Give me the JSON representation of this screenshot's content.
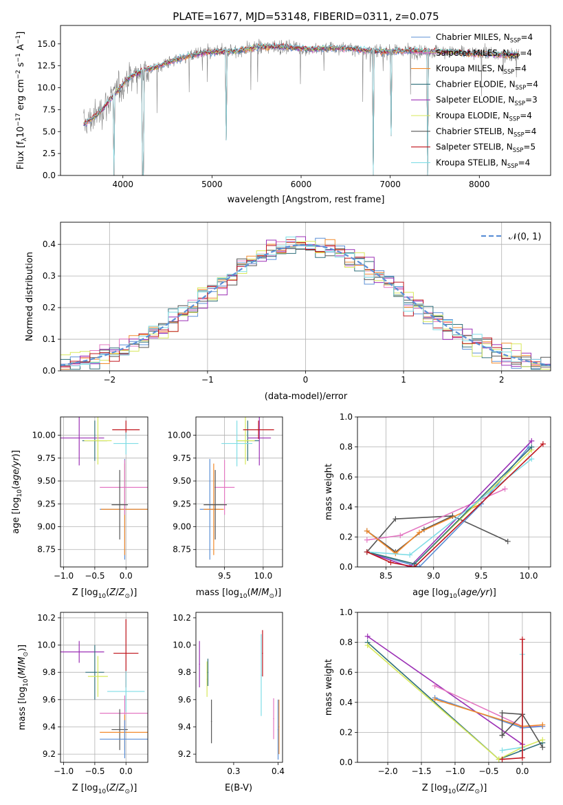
{
  "figure_title": "PLATE=1677, MJD=53148, FIBERID=0311, z=0.075",
  "colors": {
    "chabrier_miles": "#5b8fd6",
    "salpeter_miles": "#e377c2",
    "kroupa_miles": "#f28a2b",
    "chabrier_elodie": "#2f6f7a",
    "salpeter_elodie": "#9b2fb5",
    "kroupa_elodie": "#d7e85a",
    "chabrier_stelib": "#555555",
    "salpeter_stelib": "#c0141c",
    "kroupa_stelib": "#7fdde6",
    "data": "#808080",
    "normal": "#5b8fd6",
    "grid": "#b0b0b0"
  },
  "chart_data": [
    {
      "id": "spectrum",
      "type": "line",
      "title": "PLATE=1677, MJD=53148, FIBERID=0311, z=0.075",
      "xlabel": "wavelength [Angstrom, rest frame]",
      "ylabel": "Flux [f_λ10^-17 erg cm^-2 s^-1 A^-1]",
      "xlim": [
        3300,
        8800
      ],
      "ylim": [
        0,
        17.1
      ],
      "xticks": [
        4000,
        5000,
        6000,
        7000,
        8000
      ],
      "yticks": [
        0.0,
        2.5,
        5.0,
        7.5,
        10.0,
        12.5,
        15.0
      ],
      "grid": false,
      "legend_position": "top-right",
      "legend": [
        "Chabrier MILES, N_SSP=4",
        "Salpeter MILES, N_SSP=4",
        "Kroupa MILES, N_SSP=4",
        "Chabrier ELODIE, N_SSP=4",
        "Salpeter ELODIE, N_SSP=3",
        "Kroupa ELODIE, N_SSP=4",
        "Chabrier STELIB, N_SSP=4",
        "Salpeter STELIB, N_SSP=5",
        "Kroupa STELIB, N_SSP=4"
      ],
      "continuum": {
        "x": [
          3550,
          3650,
          3750,
          3850,
          3950,
          4050,
          4150,
          4250,
          4350,
          4500,
          4700,
          4900,
          5100,
          5300,
          5500,
          5700,
          5900,
          6100,
          6300,
          6500,
          6700,
          6900,
          7100,
          7300,
          7500,
          7700,
          7900,
          8100,
          8300,
          8450
        ],
        "y": [
          5.8,
          6.4,
          7.3,
          8.6,
          9.8,
          11.0,
          11.6,
          12.1,
          12.2,
          12.9,
          13.5,
          14.0,
          14.1,
          14.2,
          14.6,
          14.7,
          14.6,
          14.4,
          14.5,
          14.5,
          14.3,
          14.1,
          14.2,
          14.2,
          14.1,
          14.1,
          13.9,
          13.9,
          13.7,
          13.8
        ]
      },
      "absorption_dips": [
        {
          "x": 3900,
          "y": 0.0
        },
        {
          "x": 4225,
          "y": 0.0
        },
        {
          "x": 6810,
          "y": 0.0
        },
        {
          "x": 7420,
          "y": 0.0
        },
        {
          "x": 7010,
          "y": 4.5
        },
        {
          "x": 5160,
          "y": 4.0
        }
      ]
    },
    {
      "id": "residual-histogram",
      "type": "line",
      "xlabel": "(data-model)/error",
      "ylabel": "Normed distribution",
      "xlim": [
        -2.5,
        2.5
      ],
      "ylim": [
        0.0,
        0.47
      ],
      "xticks": [
        -2,
        -1,
        0,
        1,
        2
      ],
      "yticks": [
        0.0,
        0.1,
        0.2,
        0.3,
        0.4
      ],
      "grid": true,
      "legend_position": "top-right",
      "legend": [
        "N(0,1)"
      ],
      "bin_width": 0.1
    },
    {
      "id": "age-vs-Z",
      "type": "scatter",
      "xlabel": "Z [log10(Z/Z_sun)]",
      "ylabel": "age  [log10(age/yr)]",
      "xlim": [
        -1.05,
        0.35
      ],
      "ylim": [
        8.56,
        10.2
      ],
      "xticks": [
        -1.0,
        -0.5,
        0.0
      ],
      "yticks": [
        8.75,
        9.0,
        9.25,
        9.5,
        9.75,
        10.0
      ],
      "grid": true,
      "points": [
        {
          "series": "chabrier_miles",
          "x": -0.02,
          "y": 9.19,
          "xerr": 0.4,
          "yerr": 0.55
        },
        {
          "series": "kroupa_miles",
          "x": -0.02,
          "y": 9.19,
          "xerr": 0.38,
          "yerr": 0.5
        },
        {
          "series": "salpeter_miles",
          "x": -0.02,
          "y": 9.43,
          "xerr": 0.4,
          "yerr": 0.3
        },
        {
          "series": "chabrier_elodie",
          "x": -0.5,
          "y": 9.94,
          "xerr": 0.2,
          "yerr": 0.22
        },
        {
          "series": "salpeter_elodie",
          "x": -0.75,
          "y": 9.97,
          "xerr": 0.4,
          "yerr": 0.3
        },
        {
          "series": "kroupa_elodie",
          "x": -0.45,
          "y": 9.94,
          "xerr": 0.22,
          "yerr": 0.26
        },
        {
          "series": "chabrier_stelib",
          "x": -0.1,
          "y": 9.24,
          "xerr": 0.13,
          "yerr": 0.38
        },
        {
          "series": "salpeter_stelib",
          "x": 0.0,
          "y": 10.06,
          "xerr": 0.22,
          "yerr": 0.1
        },
        {
          "series": "kroupa_stelib",
          "x": 0.0,
          "y": 9.91,
          "xerr": 0.2,
          "yerr": 0.12
        }
      ]
    },
    {
      "id": "age-vs-mass",
      "type": "scatter",
      "xlabel": "mass [log10(M/M_sun)]",
      "ylabel": "",
      "xlim": [
        9.13,
        10.25
      ],
      "ylim": [
        8.56,
        10.2
      ],
      "xticks": [
        9.5,
        10.0
      ],
      "yticks": [
        8.75,
        9.0,
        9.25,
        9.5,
        9.75,
        10.0
      ],
      "grid": true,
      "points": [
        {
          "series": "chabrier_miles",
          "x": 9.31,
          "y": 9.19,
          "xerr": 0.13,
          "yerr": 0.55
        },
        {
          "series": "kroupa_miles",
          "x": 9.36,
          "y": 9.19,
          "xerr": 0.13,
          "yerr": 0.5
        },
        {
          "series": "salpeter_miles",
          "x": 9.5,
          "y": 9.43,
          "xerr": 0.13,
          "yerr": 0.3
        },
        {
          "series": "chabrier_stelib",
          "x": 9.38,
          "y": 9.24,
          "xerr": 0.15,
          "yerr": 0.38
        },
        {
          "series": "chabrier_elodie",
          "x": 9.8,
          "y": 9.94,
          "xerr": 0.15,
          "yerr": 0.22
        },
        {
          "series": "kroupa_elodie",
          "x": 9.77,
          "y": 9.94,
          "xerr": 0.12,
          "yerr": 0.26
        },
        {
          "series": "salpeter_elodie",
          "x": 9.95,
          "y": 9.97,
          "xerr": 0.15,
          "yerr": 0.3
        },
        {
          "series": "kroupa_stelib",
          "x": 9.66,
          "y": 9.91,
          "xerr": 0.2,
          "yerr": 0.25
        },
        {
          "series": "salpeter_stelib",
          "x": 9.94,
          "y": 10.06,
          "xerr": 0.2,
          "yerr": 0.1
        }
      ]
    },
    {
      "id": "mass-weight-vs-age",
      "type": "line",
      "xlabel": "age  [log10(age/yr)]",
      "ylabel": "mass weight",
      "xlim": [
        8.2,
        10.23
      ],
      "ylim": [
        0.0,
        1.0
      ],
      "xticks": [
        8.5,
        9.0,
        9.5,
        10.0
      ],
      "yticks": [
        0.0,
        0.2,
        0.4,
        0.6,
        0.8,
        1.0
      ],
      "grid": true,
      "series": [
        {
          "key": "chabrier_stelib",
          "x": [
            8.3,
            8.6,
            9.2,
            9.78
          ],
          "y": [
            0.1,
            0.32,
            0.34,
            0.17
          ]
        },
        {
          "key": "chabrier_stelib",
          "x": [
            8.3,
            8.6,
            8.9,
            9.2
          ],
          "y": [
            0.24,
            0.1,
            0.25,
            0.34
          ]
        },
        {
          "key": "salpeter_miles",
          "x": [
            8.3,
            8.65,
            9.75
          ],
          "y": [
            0.18,
            0.21,
            0.52
          ]
        },
        {
          "key": "kroupa_miles",
          "x": [
            8.3,
            8.6,
            8.85,
            9.5
          ],
          "y": [
            0.24,
            0.09,
            0.23,
            0.42
          ]
        },
        {
          "key": "chabrier_miles",
          "x": [
            8.3,
            8.85,
            9.5,
            10.0
          ],
          "y": [
            0.1,
            0.0,
            0.42,
            0.8
          ]
        },
        {
          "key": "salpeter_elodie",
          "x": [
            8.3,
            8.75,
            10.03
          ],
          "y": [
            0.1,
            0.0,
            0.84
          ]
        },
        {
          "key": "kroupa_elodie",
          "x": [
            8.3,
            8.8,
            10.03
          ],
          "y": [
            0.1,
            0.02,
            0.78
          ]
        },
        {
          "key": "chabrier_elodie",
          "x": [
            8.3,
            8.8,
            10.03
          ],
          "y": [
            0.1,
            0.02,
            0.8
          ]
        },
        {
          "key": "kroupa_stelib",
          "x": [
            8.3,
            8.75,
            10.03
          ],
          "y": [
            0.1,
            0.08,
            0.72
          ]
        },
        {
          "key": "salpeter_stelib",
          "x": [
            8.3,
            8.55,
            8.8,
            10.15
          ],
          "y": [
            0.1,
            0.03,
            0.0,
            0.82
          ]
        }
      ]
    },
    {
      "id": "mass-vs-Z",
      "type": "scatter",
      "xlabel": "Z [log10(Z/Z_sun)]",
      "ylabel": "mass [log10(M/M_sun)]",
      "xlim": [
        -1.05,
        0.35
      ],
      "ylim": [
        9.14,
        10.24
      ],
      "xticks": [
        -1.0,
        -0.5,
        0.0
      ],
      "yticks": [
        9.2,
        9.4,
        9.6,
        9.8,
        10.0,
        10.2
      ],
      "grid": true,
      "points": [
        {
          "series": "salpeter_elodie",
          "x": -0.75,
          "y": 9.95,
          "xerr": 0.4,
          "yerr": 0.08
        },
        {
          "series": "chabrier_elodie",
          "x": -0.5,
          "y": 9.8,
          "xerr": 0.15,
          "yerr": 0.2
        },
        {
          "series": "kroupa_elodie",
          "x": -0.45,
          "y": 9.77,
          "xerr": 0.16,
          "yerr": 0.15
        },
        {
          "series": "salpeter_stelib",
          "x": 0.0,
          "y": 9.94,
          "xerr": 0.2,
          "yerr": 0.25
        },
        {
          "series": "kroupa_stelib",
          "x": 0.0,
          "y": 9.66,
          "xerr": 0.3,
          "yerr": 0.15
        },
        {
          "series": "salpeter_miles",
          "x": -0.02,
          "y": 9.5,
          "xerr": 0.4,
          "yerr": 0.13
        },
        {
          "series": "chabrier_stelib",
          "x": -0.1,
          "y": 9.38,
          "xerr": 0.13,
          "yerr": 0.15
        },
        {
          "series": "kroupa_miles",
          "x": -0.02,
          "y": 9.36,
          "xerr": 0.4,
          "yerr": 0.13
        },
        {
          "series": "chabrier_miles",
          "x": -0.02,
          "y": 9.31,
          "xerr": 0.4,
          "yerr": 0.14
        }
      ]
    },
    {
      "id": "mass-vs-ebv",
      "type": "scatter",
      "xlabel": "E(B-V)",
      "ylabel": "",
      "xlim": [
        0.215,
        0.41
      ],
      "ylim": [
        9.14,
        10.24
      ],
      "xticks": [
        0.3,
        0.4
      ],
      "yticks": [
        9.2,
        9.4,
        9.6,
        9.8,
        10.0,
        10.2
      ],
      "grid": false,
      "points": [
        {
          "series": "salpeter_elodie",
          "x": 0.223,
          "y": 9.86,
          "xerr": 0,
          "yerr": 0.17
        },
        {
          "series": "kroupa_elodie",
          "x": 0.24,
          "y": 9.75,
          "xerr": 0,
          "yerr": 0.13
        },
        {
          "series": "chabrier_elodie",
          "x": 0.242,
          "y": 9.8,
          "xerr": 0,
          "yerr": 0.1
        },
        {
          "series": "chabrier_stelib",
          "x": 0.25,
          "y": 9.44,
          "xerr": 0,
          "yerr": 0.16
        },
        {
          "series": "salpeter_stelib",
          "x": 0.365,
          "y": 9.94,
          "xerr": 0,
          "yerr": 0.17
        },
        {
          "series": "kroupa_stelib",
          "x": 0.362,
          "y": 9.78,
          "xerr": 0,
          "yerr": 0.3
        },
        {
          "series": "salpeter_miles",
          "x": 0.39,
          "y": 9.46,
          "xerr": 0,
          "yerr": 0.15
        },
        {
          "series": "kroupa_miles",
          "x": 0.402,
          "y": 9.4,
          "xerr": 0,
          "yerr": 0.2
        },
        {
          "series": "chabrier_miles",
          "x": 0.4,
          "y": 9.38,
          "xerr": 0,
          "yerr": 0.22
        }
      ]
    },
    {
      "id": "mass-weight-vs-Z",
      "type": "line",
      "xlabel": "Z [log10(Z/Z_sun)]",
      "ylabel": "mass weight",
      "xlim": [
        -2.45,
        0.42
      ],
      "ylim": [
        0.0,
        1.0
      ],
      "xticks": [
        -2.0,
        -1.5,
        -1.0,
        -0.5,
        0.0
      ],
      "yticks": [
        0.0,
        0.2,
        0.4,
        0.6,
        0.8,
        1.0
      ],
      "grid": true,
      "series": [
        {
          "key": "salpeter_elodie",
          "x": [
            -2.3,
            0.0
          ],
          "y": [
            0.84,
            0.12
          ]
        },
        {
          "key": "salpeter_miles",
          "x": [
            -1.3,
            0.0,
            0.3
          ],
          "y": [
            0.51,
            0.24,
            0.24
          ]
        },
        {
          "key": "chabrier_miles",
          "x": [
            -1.3,
            0.0,
            0.3
          ],
          "y": [
            0.43,
            0.23,
            0.24
          ]
        },
        {
          "key": "kroupa_miles",
          "x": [
            -1.3,
            0.0,
            0.3
          ],
          "y": [
            0.42,
            0.24,
            0.25
          ]
        },
        {
          "key": "chabrier_elodie",
          "x": [
            -2.3,
            -0.35,
            0.0,
            0.3
          ],
          "y": [
            0.8,
            0.02,
            0.08,
            0.13
          ]
        },
        {
          "key": "kroupa_elodie",
          "x": [
            -2.3,
            -0.35,
            0.0,
            0.3
          ],
          "y": [
            0.78,
            0.02,
            0.1,
            0.15
          ]
        },
        {
          "key": "chabrier_stelib",
          "x": [
            -0.3,
            0.0,
            0.3
          ],
          "y": [
            0.18,
            0.32,
            0.1
          ]
        },
        {
          "key": "chabrier_stelib",
          "x": [
            -0.3,
            -0.3,
            0.0
          ],
          "y": [
            0.18,
            0.33,
            0.32
          ]
        },
        {
          "key": "kroupa_stelib",
          "x": [
            -0.3,
            0.0,
            0.0
          ],
          "y": [
            0.08,
            0.1,
            0.72
          ]
        },
        {
          "key": "salpeter_stelib",
          "x": [
            -0.3,
            0.0,
            0.0
          ],
          "y": [
            0.02,
            0.03,
            0.82
          ]
        }
      ]
    }
  ]
}
